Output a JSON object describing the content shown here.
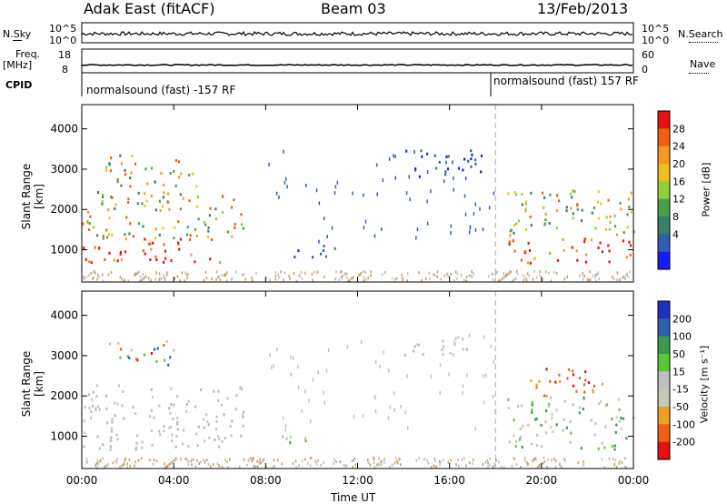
{
  "header": {
    "station": "Adak East (fitACF)",
    "beam": "Beam 03",
    "date": "13/Feb/2013"
  },
  "side_labels": {
    "nsky": "N.Sky",
    "nsky_hi": "10^5",
    "nsky_lo": "10^0",
    "freq": "Freq.",
    "freq_unit": "[MHz]",
    "freq_hi": "18",
    "freq_lo": "8",
    "cpid": "CPID",
    "nsearch": "N.Search",
    "nsearch_hi": "10^5",
    "nsearch_lo": "10^0",
    "nave": "Nave",
    "nave_hi": "60",
    "nave_lo": "0"
  },
  "cpid_labels": {
    "left": "normalsound (fast) -157 RF",
    "right": "normalsound (fast) 157 RF"
  },
  "colors": {
    "power": [
      "#1a1aff",
      "#2f5fb0",
      "#3a7f6a",
      "#4aa04a",
      "#8fcf3a",
      "#f0c020",
      "#f59a20",
      "#f06010",
      "#e81010"
    ],
    "velocity": [
      "#e81010",
      "#f06010",
      "#f0a020",
      "#c8c8b8",
      "#c0c0c0",
      "#58c838",
      "#3a9a50",
      "#2f5fb0",
      "#2030c0"
    ]
  },
  "chart_data": [
    {
      "type": "heatmap",
      "ylabel": "Slant Range [km]",
      "y_ticks": [
        1000,
        2000,
        3000,
        4000
      ],
      "ylim": [
        200,
        4600
      ],
      "x_ticks": [
        "00:00",
        "04:00",
        "08:00",
        "12:00",
        "16:00",
        "20:00",
        "00:00"
      ],
      "colorbar": {
        "label": "Power [dB]",
        "ticks": [
          "4",
          "8",
          "12",
          "16",
          "20",
          "24",
          "28"
        ]
      },
      "regions": [
        {
          "t_start": 0.0,
          "t_end": 6.0,
          "range_min": 700,
          "range_max": 1300,
          "level": "high"
        },
        {
          "t_start": 0.0,
          "t_end": 7.0,
          "range_min": 1300,
          "range_max": 2500,
          "level": "mid"
        },
        {
          "t_start": 1.0,
          "t_end": 5.0,
          "range_min": 2600,
          "range_max": 3400,
          "level": "mid"
        },
        {
          "t_start": 8.5,
          "t_end": 11.0,
          "range_min": 850,
          "range_max": 1150,
          "level": "low"
        },
        {
          "t_start": 14.0,
          "t_end": 17.5,
          "range_min": 2800,
          "range_max": 3500,
          "level": "low"
        },
        {
          "t_start": 18.5,
          "t_end": 24.0,
          "range_min": 700,
          "range_max": 1300,
          "level": "high"
        },
        {
          "t_start": 18.5,
          "t_end": 24.0,
          "range_min": 1300,
          "range_max": 2500,
          "level": "mid"
        }
      ]
    },
    {
      "type": "heatmap",
      "ylabel": "Slant Range [km]",
      "y_ticks": [
        1000,
        2000,
        3000,
        4000
      ],
      "ylim": [
        200,
        4600
      ],
      "x_ticks": [
        "00:00",
        "04:00",
        "08:00",
        "12:00",
        "16:00",
        "20:00",
        "00:00"
      ],
      "xlabel": "Time UT",
      "colorbar": {
        "label": "Velocity [m s⁻¹]",
        "ticks": [
          "-200",
          "-100",
          "-50",
          "-15",
          "15",
          "50",
          "100",
          "200"
        ]
      },
      "regions": [
        {
          "t_start": 0.0,
          "t_end": 7.0,
          "range_min": 700,
          "range_max": 2300,
          "level": "grey"
        },
        {
          "t_start": 1.0,
          "t_end": 4.0,
          "range_min": 2800,
          "range_max": 3400,
          "level": "mixed"
        },
        {
          "t_start": 8.5,
          "t_end": 10.5,
          "range_min": 800,
          "range_max": 1100,
          "level": "green"
        },
        {
          "t_start": 14.0,
          "t_end": 17.0,
          "range_min": 3000,
          "range_max": 3500,
          "level": "grey"
        },
        {
          "t_start": 18.5,
          "t_end": 24.0,
          "range_min": 700,
          "range_max": 2000,
          "level": "grey-green"
        },
        {
          "t_start": 19.5,
          "t_end": 23.0,
          "range_min": 2000,
          "range_max": 2700,
          "level": "orange"
        }
      ]
    }
  ]
}
